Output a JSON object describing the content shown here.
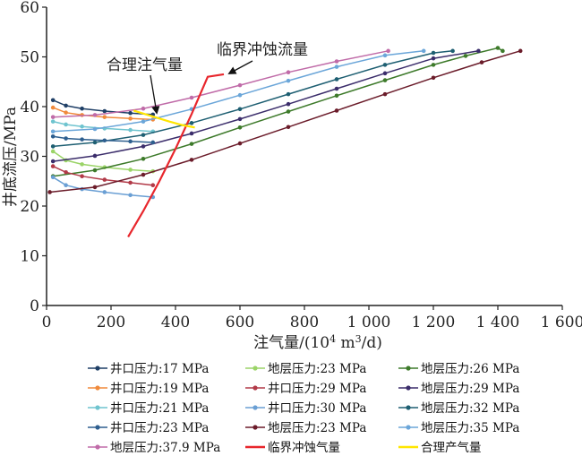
{
  "chart_data": {
    "type": "line",
    "xlabel_main": "注气量/(10",
    "xlabel_sup1": "4",
    "xlabel_mid": " m",
    "xlabel_sup2": "3",
    "xlabel_end": "/d)",
    "ylabel": "井底流压/MPa",
    "xlim": [
      0,
      1600
    ],
    "ylim": [
      0,
      60
    ],
    "xticks": [
      0,
      200,
      400,
      600,
      800,
      1000,
      1200,
      1400,
      1600
    ],
    "xtick_labels": [
      "0",
      "200",
      "400",
      "600",
      "800",
      "1 000",
      "1 200",
      "1 400",
      "1 600"
    ],
    "yticks": [
      0,
      10,
      20,
      30,
      40,
      50,
      60
    ],
    "ytick_labels": [
      "0",
      "10",
      "20",
      "30",
      "40",
      "50",
      "60"
    ],
    "annotations": {
      "optimal": "合理注气量",
      "erosion": "临界冲蚀流量"
    },
    "series": [
      {
        "name": "井口压力:17 MPa",
        "color": "#1f3f66",
        "marker": true,
        "x": [
          20,
          60,
          110,
          180,
          260,
          330
        ],
        "y": [
          41.3,
          40.2,
          39.6,
          39.1,
          38.7,
          38.4
        ]
      },
      {
        "name": "地层压力:23 MPa",
        "color": "#9bd468",
        "marker": true,
        "x": [
          20,
          60,
          110,
          180,
          260,
          330
        ],
        "y": [
          31.0,
          29.2,
          28.4,
          27.8,
          27.3,
          27.0
        ]
      },
      {
        "name": "地层压力:26 MPa",
        "color": "#3d7a2a",
        "marker": true,
        "x": [
          20,
          150,
          300,
          450,
          600,
          750,
          900,
          1050,
          1200,
          1300,
          1400,
          1415
        ],
        "y": [
          26.0,
          27.2,
          29.5,
          32.5,
          35.8,
          39.0,
          42.2,
          45.3,
          48.4,
          50.2,
          51.8,
          51.2
        ]
      },
      {
        "name": "井口压力:19 MPa",
        "color": "#f08a3c",
        "marker": true,
        "x": [
          20,
          60,
          110,
          180,
          260,
          330
        ],
        "y": [
          39.8,
          38.8,
          38.3,
          37.9,
          37.6,
          37.4
        ]
      },
      {
        "name": "井口压力:29 MPa",
        "color": "#b23a48",
        "marker": true,
        "x": [
          20,
          60,
          110,
          180,
          260,
          330
        ],
        "y": [
          28.0,
          26.8,
          26.0,
          25.3,
          24.7,
          24.2
        ]
      },
      {
        "name": "地层压力:29 MPa",
        "color": "#3b2d6b",
        "marker": true,
        "x": [
          20,
          150,
          300,
          450,
          600,
          750,
          900,
          1050,
          1200,
          1340
        ],
        "y": [
          29.0,
          30.1,
          32.0,
          34.6,
          37.5,
          40.5,
          43.6,
          46.7,
          49.7,
          51.2
        ]
      },
      {
        "name": "井口压力:21 MPa",
        "color": "#6fc4cf",
        "marker": true,
        "x": [
          20,
          60,
          110,
          180,
          260,
          330
        ],
        "y": [
          37.0,
          36.4,
          36.0,
          35.6,
          35.3,
          35.0
        ]
      },
      {
        "name": "井口压力:30 MPa",
        "color": "#6a9fd4",
        "marker": true,
        "x": [
          20,
          60,
          110,
          180,
          260,
          330
        ],
        "y": [
          25.8,
          24.2,
          23.4,
          22.8,
          22.2,
          21.8
        ]
      },
      {
        "name": "地层压力:32 MPa",
        "color": "#1e5f72",
        "marker": true,
        "x": [
          20,
          150,
          300,
          450,
          600,
          750,
          900,
          1050,
          1200,
          1260
        ],
        "y": [
          32.0,
          32.8,
          34.3,
          36.7,
          39.5,
          42.5,
          45.5,
          48.4,
          50.8,
          51.2
        ]
      },
      {
        "name": "井口压力:23 MPa",
        "color": "#2e5f8f",
        "marker": true,
        "x": [
          20,
          60,
          110,
          180,
          260,
          330
        ],
        "y": [
          34.0,
          33.6,
          33.4,
          33.2,
          33.0,
          32.8
        ]
      },
      {
        "name": "地层压力:23 MPa",
        "color": "#6b1c2a",
        "marker": true,
        "x": [
          10,
          150,
          300,
          450,
          600,
          750,
          900,
          1050,
          1200,
          1350,
          1470
        ],
        "y": [
          22.8,
          23.8,
          26.3,
          29.3,
          32.6,
          35.9,
          39.2,
          42.5,
          45.8,
          48.9,
          51.2
        ]
      },
      {
        "name": "地层压力:35 MPa",
        "color": "#6ba6d9",
        "marker": true,
        "x": [
          20,
          150,
          300,
          450,
          600,
          750,
          900,
          1050,
          1170
        ],
        "y": [
          35.0,
          35.5,
          37.0,
          39.5,
          42.3,
          45.2,
          48.0,
          50.3,
          51.2
        ]
      },
      {
        "name": "地层压力:37.9 MPa",
        "color": "#c06ba8",
        "marker": true,
        "x": [
          20,
          150,
          300,
          450,
          600,
          750,
          900,
          1060
        ],
        "y": [
          37.9,
          38.3,
          39.6,
          41.8,
          44.3,
          46.9,
          49.1,
          51.2
        ]
      },
      {
        "name": "临界冲蚀气量",
        "color": "#e8262c",
        "marker": false,
        "x": [
          253,
          300,
          350,
          400,
          450,
          500,
          550
        ],
        "y": [
          13.8,
          19.0,
          25.0,
          31.5,
          38.5,
          46.0,
          46.5
        ]
      },
      {
        "name": "合理产气量",
        "color": "#ffe600",
        "marker": false,
        "x": [
          270,
          330,
          380,
          420,
          460
        ],
        "y": [
          39.2,
          38.0,
          37.0,
          36.3,
          35.8
        ]
      }
    ],
    "legend": {
      "placement": "bottom",
      "columns": 3,
      "entries": [
        {
          "label": "井口压力:17 MPa",
          "color": "#1f3f66",
          "marker": true
        },
        {
          "label": "地层压力:23 MPa",
          "color": "#9bd468",
          "marker": true
        },
        {
          "label": "地层压力:26 MPa",
          "color": "#3d7a2a",
          "marker": true
        },
        {
          "label": "井口压力:19 MPa",
          "color": "#f08a3c",
          "marker": true
        },
        {
          "label": "井口压力:29 MPa",
          "color": "#b23a48",
          "marker": true
        },
        {
          "label": "地层压力:29 MPa",
          "color": "#3b2d6b",
          "marker": true
        },
        {
          "label": "井口压力:21 MPa",
          "color": "#6fc4cf",
          "marker": true
        },
        {
          "label": "井口压力:30 MPa",
          "color": "#6a9fd4",
          "marker": true
        },
        {
          "label": "地层压力:32 MPa",
          "color": "#1e5f72",
          "marker": true
        },
        {
          "label": "井口压力:23 MPa",
          "color": "#2e5f8f",
          "marker": true
        },
        {
          "label": "地层压力:23 MPa",
          "color": "#6b1c2a",
          "marker": true
        },
        {
          "label": "地层压力:35 MPa",
          "color": "#6ba6d9",
          "marker": true
        },
        {
          "label": "地层压力:37.9 MPa",
          "color": "#c06ba8",
          "marker": true
        },
        {
          "label": "临界冲蚀气量",
          "color": "#e8262c",
          "marker": false
        },
        {
          "label": "合理产气量",
          "color": "#ffe600",
          "marker": false
        }
      ]
    }
  }
}
